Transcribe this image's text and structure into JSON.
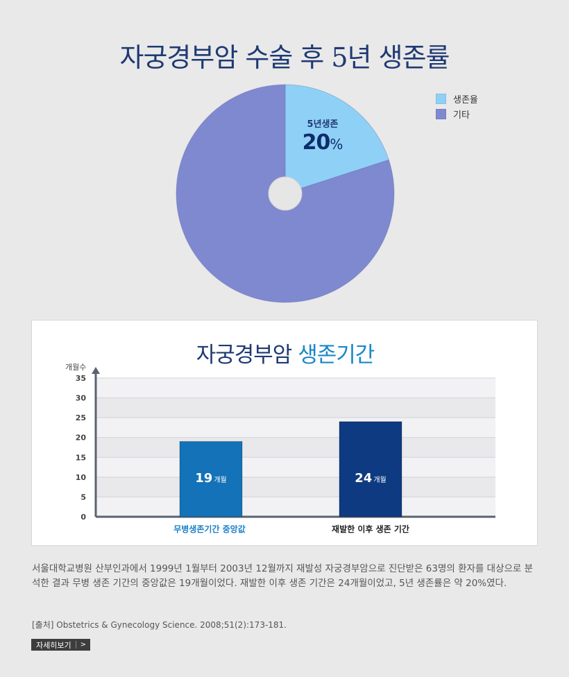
{
  "title": "자궁경부암 수술 후 5년 생존률",
  "pie": {
    "label_name": "5년생존",
    "label_value": "20",
    "label_unit": "%"
  },
  "legend": [
    {
      "label": "생존율",
      "color": "#8fd0f7"
    },
    {
      "label": "기타",
      "color": "#7f89cf"
    }
  ],
  "card": {
    "title_main": "자궁경부암",
    "title_highlight": "생존기간"
  },
  "chart_data": [
    {
      "type": "pie",
      "title": "자궁경부암 수술 후 5년 생존률",
      "labels": [
        "생존율",
        "기타"
      ],
      "values": [
        20,
        80
      ],
      "colors": [
        "#8fd0f7",
        "#7f89cf"
      ],
      "annotation": "5년생존 20%",
      "legend": "top-right",
      "donut_hole": true
    },
    {
      "type": "bar",
      "title": "자궁경부암 생존기간",
      "categories": [
        "무병생존기간 중앙값",
        "재발한 이후 생존 기간"
      ],
      "values": [
        19,
        24
      ],
      "value_labels": [
        "19",
        "24"
      ],
      "value_unit": "개월",
      "ylabel": "개월수",
      "ylim": [
        0,
        35
      ],
      "yticks": [
        0,
        5,
        10,
        15,
        20,
        25,
        30,
        35
      ],
      "bar_colors": [
        "#1372b8",
        "#0e3a82"
      ],
      "category_label_colors": [
        "#1a80c8",
        "#222222"
      ],
      "grid": true
    }
  ],
  "description": "서울대학교병원 산부인과에서 1999년 1월부터 2003년 12월까지 재발성 자궁경부암으로 진단받은 63명의 환자를 대상으로 분석한 결과 무병 생존 기간의 중앙값은 19개월이었다. 재발한 이후 생존 기간은 24개월이었고, 5년 생존률은 약 20%였다.",
  "source": "[출처] Obstetrics & Gynecology Science. 2008;51(2):173-181.",
  "more_button": {
    "label": "자세히보기",
    "icon": "chevron-right-icon"
  }
}
